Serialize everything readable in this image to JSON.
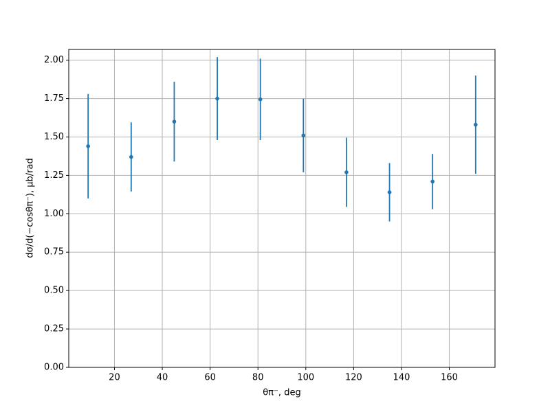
{
  "chart_data": {
    "type": "scatter",
    "x_label": "θπ⁻, deg",
    "y_label": "dσ/d(−cosθπ⁻), μb/rad",
    "x": [
      9,
      27,
      45,
      63,
      81,
      99,
      117,
      135,
      153,
      171
    ],
    "values": [
      1.44,
      1.37,
      1.6,
      1.75,
      1.745,
      1.51,
      1.27,
      1.14,
      1.21,
      1.58
    ],
    "errors": [
      0.34,
      0.225,
      0.26,
      0.27,
      0.265,
      0.24,
      0.225,
      0.19,
      0.18,
      0.32
    ],
    "color": "#1f77b4",
    "xlim": [
      0.9,
      179.1
    ],
    "ylim": [
      0,
      2.07
    ],
    "xticks": [
      20,
      40,
      60,
      80,
      100,
      120,
      140,
      160
    ],
    "yticks": [
      {
        "value": 0,
        "label": "0.00"
      },
      {
        "value": 0.25,
        "label": "0.25"
      },
      {
        "value": 0.5,
        "label": "0.50"
      },
      {
        "value": 0.75,
        "label": "0.75"
      },
      {
        "value": 1,
        "label": "1.00"
      },
      {
        "value": 1.25,
        "label": "1.25"
      },
      {
        "value": 1.5,
        "label": "1.50"
      },
      {
        "value": 1.75,
        "label": "1.75"
      },
      {
        "value": 2,
        "label": "2.00"
      }
    ],
    "grid": true
  }
}
